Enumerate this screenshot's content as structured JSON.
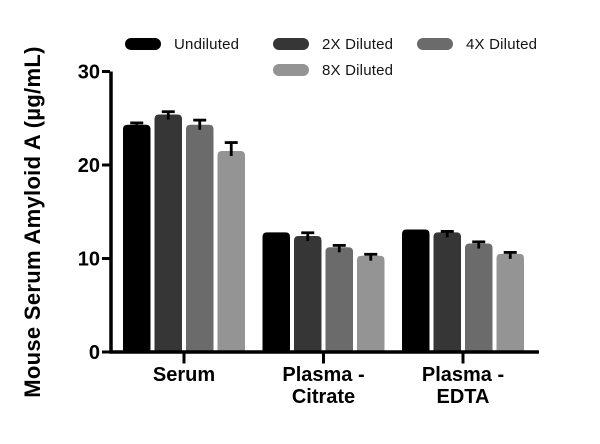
{
  "legend": {
    "items": [
      {
        "label": "Undiluted",
        "color": "#000000"
      },
      {
        "label": "2X Diluted",
        "color": "#363636"
      },
      {
        "label": "4X Diluted",
        "color": "#6b6b6b"
      },
      {
        "label": "8X Diluted",
        "color": "#949494"
      }
    ]
  },
  "chart_data": {
    "type": "bar",
    "ylabel": "Mouse Serum Amyloid A (µg/mL)",
    "xlabel": "",
    "ylim": [
      0,
      30
    ],
    "yticks": [
      0,
      10,
      20,
      30
    ],
    "grid": false,
    "legend_position": "top",
    "categories": [
      "Serum",
      "Plasma -\nCitrate",
      "Plasma -\nEDTA"
    ],
    "series": [
      {
        "name": "Undiluted",
        "color": "#000000",
        "values": [
          24.3,
          12.8,
          13.1
        ],
        "errors": [
          0.2,
          0.0,
          0.0
        ]
      },
      {
        "name": "2X Diluted",
        "color": "#363636",
        "values": [
          25.4,
          12.4,
          12.8
        ],
        "errors": [
          0.3,
          0.35,
          0.1
        ]
      },
      {
        "name": "4X Diluted",
        "color": "#6b6b6b",
        "values": [
          24.3,
          11.2,
          11.6
        ],
        "errors": [
          0.5,
          0.2,
          0.18
        ]
      },
      {
        "name": "8X Diluted",
        "color": "#949494",
        "values": [
          21.5,
          10.3,
          10.5
        ],
        "errors": [
          0.9,
          0.15,
          0.15
        ]
      }
    ],
    "error_bar_color": "#000000"
  }
}
